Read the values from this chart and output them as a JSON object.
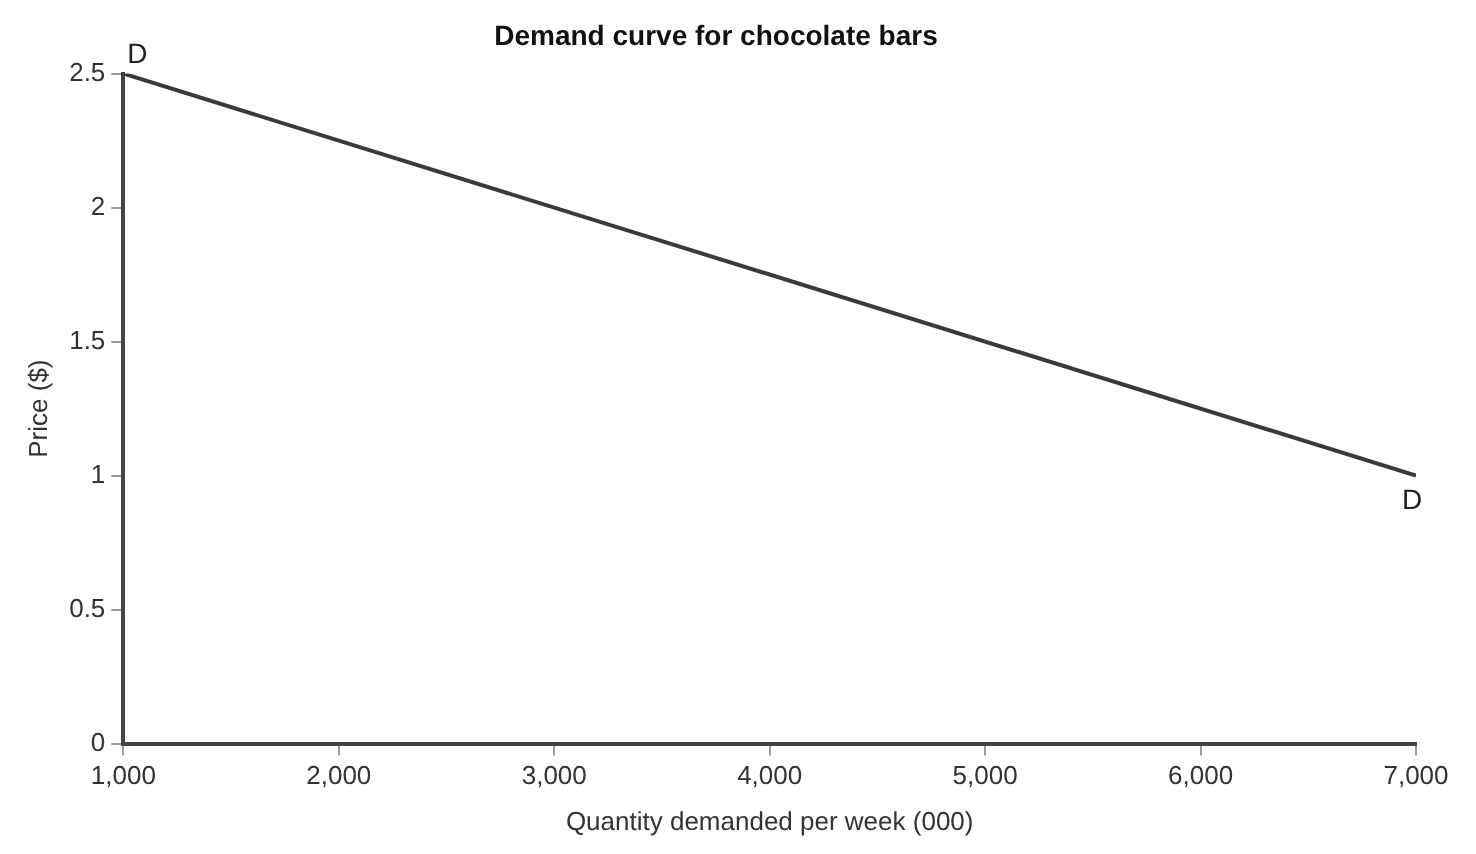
{
  "chart_data": {
    "type": "line",
    "title": "Demand curve for chocolate bars",
    "xlabel": "Quantity demanded per week (000)",
    "ylabel": "Price ($)",
    "x": [
      1000,
      7000
    ],
    "series": [
      {
        "color": "#3a3a3a",
        "values": [
          2.5,
          1
        ]
      }
    ],
    "xlim": [
      1000,
      7000
    ],
    "xticks": [
      {
        "value": 1000,
        "label": "1,000"
      },
      {
        "value": 2000,
        "label": "2,000"
      },
      {
        "value": 3000,
        "label": "3,000"
      },
      {
        "value": 4000,
        "label": "4,000"
      },
      {
        "value": 5000,
        "label": "5,000"
      },
      {
        "value": 6000,
        "label": "6,000"
      },
      {
        "value": 7000,
        "label": "7,000"
      }
    ],
    "ylim": [
      0,
      2.5
    ],
    "yticks": [
      0,
      0.5,
      1,
      1.5,
      2,
      2.5
    ],
    "grid": false,
    "legend": false,
    "marker": "none",
    "line_style": "solid",
    "annotations": [
      {
        "text": "D",
        "x": 1000,
        "y": 2.5
      },
      {
        "text": "D",
        "x": 7000,
        "y": 1
      }
    ]
  }
}
